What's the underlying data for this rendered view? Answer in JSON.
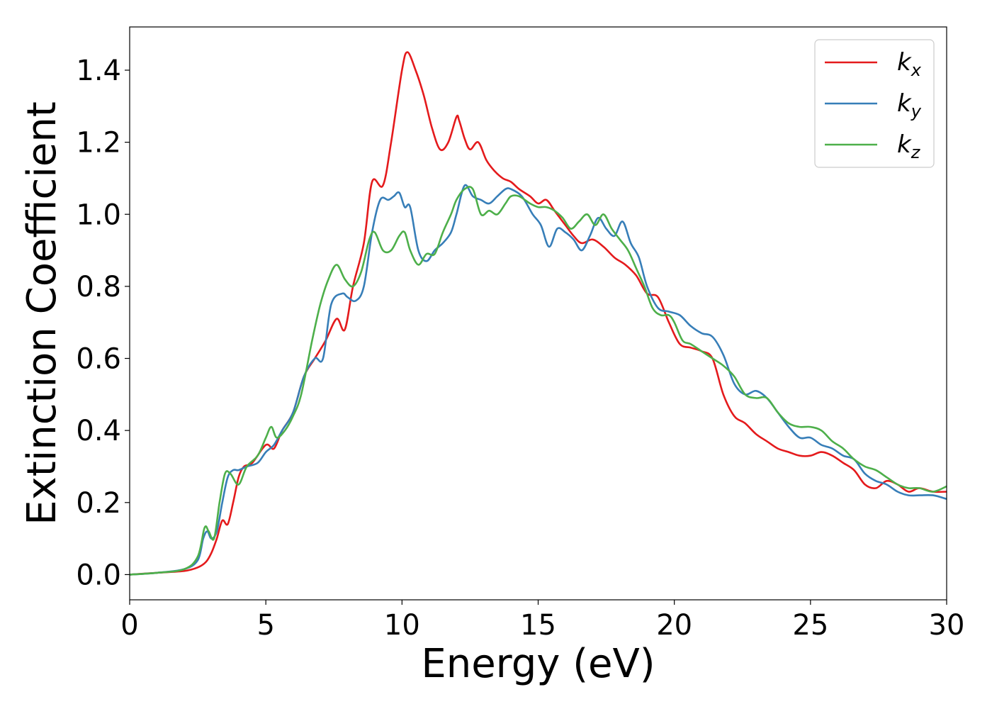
{
  "chart_data": {
    "type": "line",
    "xlabel": "Energy (eV)",
    "ylabel": "Extinction Coefficient",
    "xlim": [
      0,
      30
    ],
    "ylim": [
      -0.07,
      1.52
    ],
    "xticks": [
      0,
      5,
      10,
      15,
      20,
      25,
      30
    ],
    "yticks": [
      0.0,
      0.2,
      0.4,
      0.6,
      0.8,
      1.0,
      1.2,
      1.4
    ],
    "xtick_labels": [
      "0",
      "5",
      "10",
      "15",
      "20",
      "25",
      "30"
    ],
    "ytick_labels": [
      "0.0",
      "0.2",
      "0.4",
      "0.6",
      "0.8",
      "1.0",
      "1.2",
      "1.4"
    ],
    "grid": false,
    "legend_position": "top-right",
    "series": [
      {
        "name": "k_x",
        "label_main": "k",
        "label_sub": "x",
        "color": "#e41a1c",
        "x": [
          0,
          1,
          2,
          2.5,
          2.8,
          3.0,
          3.2,
          3.4,
          3.6,
          3.8,
          4.0,
          4.2,
          4.5,
          5.0,
          5.3,
          5.6,
          6.0,
          6.4,
          6.8,
          7.2,
          7.6,
          7.9,
          8.2,
          8.6,
          8.9,
          9.3,
          9.6,
          10.0,
          10.2,
          10.5,
          10.8,
          11.1,
          11.4,
          11.7,
          12.0,
          12.1,
          12.3,
          12.5,
          12.8,
          13.1,
          13.4,
          13.7,
          14.0,
          14.3,
          14.7,
          15.0,
          15.3,
          15.6,
          16.0,
          16.3,
          16.6,
          17.0,
          17.4,
          17.8,
          18.2,
          18.6,
          19.0,
          19.4,
          19.8,
          20.2,
          20.6,
          21.0,
          21.4,
          21.8,
          22.2,
          22.6,
          23.0,
          23.4,
          23.8,
          24.2,
          24.6,
          25.0,
          25.4,
          25.8,
          26.2,
          26.6,
          27.0,
          27.4,
          27.8,
          28.2,
          28.6,
          29.0,
          29.5,
          30.0
        ],
        "y": [
          0.0,
          0.005,
          0.01,
          0.02,
          0.035,
          0.06,
          0.1,
          0.15,
          0.14,
          0.2,
          0.27,
          0.3,
          0.31,
          0.36,
          0.35,
          0.4,
          0.45,
          0.55,
          0.6,
          0.65,
          0.71,
          0.68,
          0.8,
          0.92,
          1.09,
          1.08,
          1.2,
          1.4,
          1.45,
          1.4,
          1.33,
          1.24,
          1.18,
          1.2,
          1.27,
          1.26,
          1.21,
          1.18,
          1.2,
          1.15,
          1.12,
          1.1,
          1.09,
          1.07,
          1.05,
          1.03,
          1.04,
          1.01,
          0.97,
          0.94,
          0.92,
          0.93,
          0.91,
          0.88,
          0.86,
          0.83,
          0.78,
          0.77,
          0.7,
          0.64,
          0.63,
          0.62,
          0.6,
          0.5,
          0.44,
          0.42,
          0.39,
          0.37,
          0.35,
          0.34,
          0.33,
          0.33,
          0.34,
          0.33,
          0.31,
          0.29,
          0.25,
          0.24,
          0.26,
          0.25,
          0.23,
          0.24,
          0.23,
          0.23
        ]
      },
      {
        "name": "k_y",
        "label_main": "k",
        "label_sub": "y",
        "color": "#377eb8",
        "x": [
          0,
          1,
          2,
          2.5,
          2.7,
          2.85,
          3.0,
          3.2,
          3.4,
          3.6,
          3.8,
          4.0,
          4.3,
          4.7,
          5.0,
          5.3,
          5.6,
          6.0,
          6.4,
          6.8,
          7.1,
          7.4,
          7.8,
          8.0,
          8.3,
          8.6,
          8.9,
          9.2,
          9.5,
          9.7,
          9.9,
          10.1,
          10.3,
          10.6,
          10.9,
          11.2,
          11.5,
          11.8,
          12.0,
          12.3,
          12.6,
          12.9,
          13.2,
          13.5,
          13.8,
          14.0,
          14.4,
          14.8,
          15.1,
          15.4,
          15.7,
          16.0,
          16.3,
          16.6,
          16.9,
          17.2,
          17.5,
          17.8,
          18.1,
          18.4,
          18.7,
          19.0,
          19.4,
          19.8,
          20.2,
          20.6,
          21.0,
          21.4,
          21.8,
          22.2,
          22.6,
          23.0,
          23.4,
          23.8,
          24.2,
          24.6,
          25.0,
          25.4,
          25.8,
          26.2,
          26.6,
          27.0,
          27.4,
          27.8,
          28.2,
          28.6,
          29.0,
          29.5,
          30.0
        ],
        "y": [
          0.0,
          0.005,
          0.015,
          0.04,
          0.1,
          0.12,
          0.1,
          0.12,
          0.2,
          0.27,
          0.29,
          0.29,
          0.3,
          0.31,
          0.34,
          0.36,
          0.4,
          0.45,
          0.55,
          0.6,
          0.6,
          0.75,
          0.78,
          0.77,
          0.76,
          0.8,
          0.95,
          1.04,
          1.04,
          1.05,
          1.06,
          1.02,
          1.02,
          0.9,
          0.87,
          0.9,
          0.92,
          0.95,
          1.0,
          1.08,
          1.05,
          1.04,
          1.03,
          1.05,
          1.07,
          1.07,
          1.05,
          1.0,
          0.97,
          0.91,
          0.96,
          0.95,
          0.93,
          0.9,
          0.94,
          0.99,
          0.96,
          0.94,
          0.98,
          0.92,
          0.88,
          0.8,
          0.74,
          0.73,
          0.72,
          0.69,
          0.67,
          0.66,
          0.61,
          0.53,
          0.5,
          0.51,
          0.49,
          0.45,
          0.41,
          0.38,
          0.38,
          0.36,
          0.35,
          0.33,
          0.32,
          0.28,
          0.26,
          0.25,
          0.23,
          0.22,
          0.22,
          0.22,
          0.21
        ]
      },
      {
        "name": "k_z",
        "label_main": "k",
        "label_sub": "z",
        "color": "#4daf4a",
        "x": [
          0,
          1,
          2,
          2.5,
          2.75,
          2.9,
          3.1,
          3.3,
          3.5,
          3.7,
          4.0,
          4.3,
          4.7,
          5.0,
          5.2,
          5.4,
          5.7,
          6.0,
          6.3,
          6.7,
          7.0,
          7.3,
          7.6,
          7.9,
          8.2,
          8.5,
          8.8,
          9.0,
          9.3,
          9.6,
          9.9,
          10.1,
          10.3,
          10.6,
          10.9,
          11.2,
          11.5,
          11.8,
          12.0,
          12.3,
          12.6,
          12.9,
          13.2,
          13.5,
          13.8,
          14.0,
          14.3,
          14.7,
          15.0,
          15.3,
          15.6,
          15.9,
          16.2,
          16.5,
          16.8,
          17.1,
          17.4,
          17.7,
          18.0,
          18.3,
          18.6,
          18.9,
          19.2,
          19.5,
          19.8,
          20.0,
          20.3,
          20.6,
          21.0,
          21.4,
          21.8,
          22.2,
          22.6,
          23.0,
          23.4,
          23.8,
          24.2,
          24.6,
          25.0,
          25.4,
          25.8,
          26.2,
          26.6,
          27.0,
          27.4,
          27.8,
          28.2,
          28.6,
          29.0,
          29.5,
          30.0
        ],
        "y": [
          0.0,
          0.005,
          0.015,
          0.05,
          0.13,
          0.12,
          0.1,
          0.2,
          0.28,
          0.28,
          0.25,
          0.3,
          0.33,
          0.38,
          0.41,
          0.38,
          0.4,
          0.44,
          0.5,
          0.65,
          0.75,
          0.82,
          0.86,
          0.82,
          0.8,
          0.84,
          0.93,
          0.95,
          0.9,
          0.9,
          0.94,
          0.95,
          0.9,
          0.86,
          0.89,
          0.89,
          0.95,
          1.0,
          1.04,
          1.07,
          1.07,
          1.0,
          1.01,
          1.0,
          1.03,
          1.05,
          1.05,
          1.03,
          1.02,
          1.02,
          1.01,
          0.99,
          0.96,
          0.98,
          1.0,
          0.97,
          1.0,
          0.96,
          0.93,
          0.9,
          0.85,
          0.8,
          0.74,
          0.72,
          0.72,
          0.7,
          0.65,
          0.64,
          0.62,
          0.6,
          0.58,
          0.55,
          0.5,
          0.49,
          0.49,
          0.45,
          0.42,
          0.41,
          0.41,
          0.4,
          0.37,
          0.35,
          0.32,
          0.3,
          0.29,
          0.27,
          0.25,
          0.24,
          0.24,
          0.23,
          0.245
        ]
      }
    ]
  }
}
